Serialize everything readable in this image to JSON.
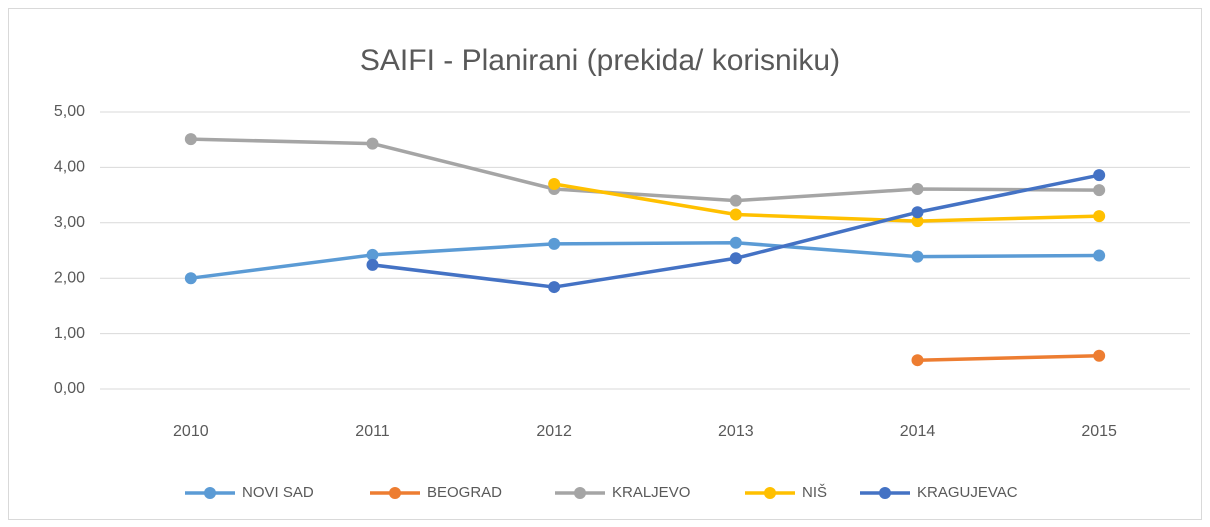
{
  "chart_data": {
    "type": "line",
    "title": "SAIFI - Planirani (prekida/ korisniku)",
    "categories": [
      "2010",
      "2011",
      "2012",
      "2013",
      "2014",
      "2015"
    ],
    "series": [
      {
        "name": "NOVI SAD",
        "color": "#5b9bd5",
        "values": [
          2.0,
          2.42,
          2.62,
          2.64,
          2.39,
          2.41
        ]
      },
      {
        "name": "BEOGRAD",
        "color": "#ed7d31",
        "values": [
          null,
          null,
          null,
          null,
          0.52,
          0.6
        ]
      },
      {
        "name": "KRALJEVO",
        "color": "#a5a5a5",
        "values": [
          4.51,
          4.43,
          3.61,
          3.4,
          3.61,
          3.59
        ]
      },
      {
        "name": "NIŠ",
        "color": "#ffc000",
        "values": [
          null,
          null,
          3.7,
          3.15,
          3.03,
          3.12
        ]
      },
      {
        "name": "KRAGUJEVAC",
        "color": "#4472c4",
        "values": [
          null,
          2.24,
          1.84,
          2.36,
          3.19,
          3.86
        ]
      }
    ],
    "ylim": [
      0,
      5
    ],
    "yticks": [
      {
        "value": 0,
        "label": "0,00"
      },
      {
        "value": 1,
        "label": "1,00"
      },
      {
        "value": 2,
        "label": "2,00"
      },
      {
        "value": 3,
        "label": "3,00"
      },
      {
        "value": 4,
        "label": "4,00"
      },
      {
        "value": 5,
        "label": "5,00"
      }
    ],
    "grid": true,
    "legend": "bottom"
  }
}
